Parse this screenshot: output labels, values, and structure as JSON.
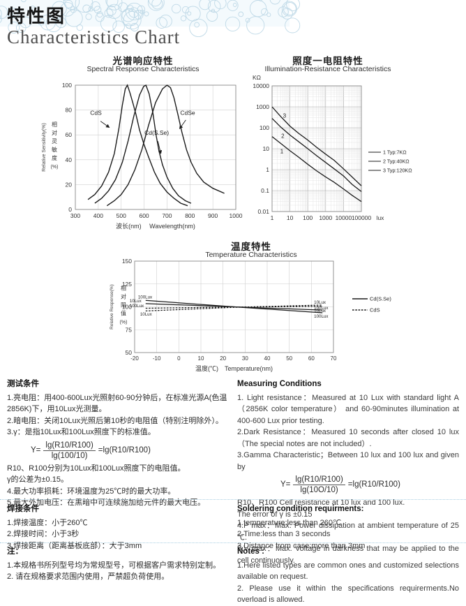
{
  "header": {
    "title_zh": "特性图",
    "title_en": "Characteristics Chart"
  },
  "chart_data": [
    {
      "type": "line",
      "title_zh": "光谱响应特性",
      "title_en": "Spectral Response Characteristics",
      "xlabel": "波长(nm)　 Wavelength(nm)",
      "ylabel_en": "Relative Sensitivity(%)",
      "ylabel_zh_chars": [
        "相",
        "对",
        "灵",
        "敏",
        "度",
        "(%)"
      ],
      "xlim": [
        300,
        1000
      ],
      "ylim": [
        0,
        100
      ],
      "xtick_step": 100,
      "ytick_step": 20,
      "grid": true,
      "series": [
        {
          "name": "CdS",
          "points": [
            [
              355,
              8
            ],
            [
              385,
              12
            ],
            [
              415,
              19
            ],
            [
              445,
              30
            ],
            [
              470,
              45
            ],
            [
              490,
              65
            ],
            [
              505,
              84
            ],
            [
              518,
              97
            ],
            [
              527,
              100
            ],
            [
              538,
              94
            ],
            [
              552,
              85
            ],
            [
              565,
              76
            ],
            [
              580,
              64
            ],
            [
              600,
              52
            ],
            [
              620,
              42
            ],
            [
              645,
              30
            ],
            [
              670,
              21
            ],
            [
              700,
              14
            ],
            [
              730,
              9
            ],
            [
              760,
              5
            ],
            [
              790,
              3
            ]
          ]
        },
        {
          "name": "Cd(S.Se)",
          "points": [
            [
              385,
              5
            ],
            [
              415,
              9
            ],
            [
              445,
              15
            ],
            [
              475,
              24
            ],
            [
              505,
              38
            ],
            [
              530,
              55
            ],
            [
              555,
              75
            ],
            [
              580,
              92
            ],
            [
              598,
              99
            ],
            [
              608,
              100
            ],
            [
              622,
              93
            ],
            [
              638,
              78
            ],
            [
              652,
              60
            ],
            [
              665,
              47
            ],
            [
              680,
              36
            ],
            [
              700,
              26
            ],
            [
              725,
              17
            ],
            [
              750,
              11
            ],
            [
              780,
              7
            ],
            [
              805,
              5
            ]
          ]
        },
        {
          "name": "CdSe",
          "points": [
            [
              438,
              3
            ],
            [
              470,
              7
            ],
            [
              500,
              12
            ],
            [
              530,
              20
            ],
            [
              560,
              32
            ],
            [
              590,
              48
            ],
            [
              620,
              68
            ],
            [
              650,
              86
            ],
            [
              680,
              97
            ],
            [
              700,
              100
            ],
            [
              715,
              98
            ],
            [
              730,
              90
            ],
            [
              748,
              76
            ],
            [
              765,
              62
            ],
            [
              785,
              48
            ],
            [
              805,
              38
            ],
            [
              830,
              29
            ],
            [
              860,
              22
            ],
            [
              900,
              17
            ],
            [
              950,
              13
            ]
          ]
        }
      ],
      "annotations": [
        {
          "text": "CdS",
          "tx": 390,
          "ty": 76,
          "ax1": 410,
          "ay1": 71,
          "ax2": 448,
          "ay2": 66
        },
        {
          "text": "CdSe",
          "tx": 790,
          "ty": 76,
          "ax1": 782,
          "ay1": 72,
          "ax2": 755,
          "ay2": 65
        },
        {
          "text": "Cd(S.Se)",
          "tx": 655,
          "ty": 60,
          "ax1": 660,
          "ay1": 55,
          "ax2": 673,
          "ay2": 45
        }
      ]
    },
    {
      "type": "line",
      "xscale": "log",
      "yscale": "log",
      "title_zh": "照度一电阻特性",
      "title_en": "Illumination-Resistance Characteristics",
      "y_unit": "KΩ",
      "x_unit": "lux",
      "xlim": [
        1,
        100000
      ],
      "ylim": [
        0.01,
        10000
      ],
      "xticks": [
        1,
        10,
        100,
        1000,
        10000,
        100000
      ],
      "yticks": [
        10000,
        1000,
        100,
        10,
        1,
        0.1,
        0.01
      ],
      "series": [
        {
          "name": "1",
          "label_pos": [
            3.5,
            6
          ],
          "points": [
            [
              1,
              38
            ],
            [
              3,
              18
            ],
            [
              10,
              8
            ],
            [
              30,
              4
            ],
            [
              100,
              1.8
            ],
            [
              300,
              0.9
            ],
            [
              1000,
              0.45
            ],
            [
              3000,
              0.25
            ],
            [
              10000,
              0.12
            ],
            [
              30000,
              0.06
            ],
            [
              100000,
              0.03
            ]
          ]
        },
        {
          "name": "2",
          "label_pos": [
            4,
            33
          ],
          "points": [
            [
              1,
              280
            ],
            [
              3,
              110
            ],
            [
              10,
              45
            ],
            [
              30,
              22
            ],
            [
              100,
              10
            ],
            [
              300,
              4.8
            ],
            [
              1000,
              2.2
            ],
            [
              3000,
              1.1
            ],
            [
              10000,
              0.5
            ],
            [
              30000,
              0.2
            ],
            [
              100000,
              0.09
            ]
          ]
        },
        {
          "name": "3",
          "label_pos": [
            5,
            300
          ],
          "points": [
            [
              1,
              1000
            ],
            [
              3,
              350
            ],
            [
              10,
              120
            ],
            [
              30,
              55
            ],
            [
              100,
              26
            ],
            [
              300,
              12
            ],
            [
              1000,
              5.5
            ],
            [
              3000,
              2.8
            ],
            [
              10000,
              1.1
            ],
            [
              30000,
              0.45
            ],
            [
              100000,
              0.17
            ]
          ]
        }
      ],
      "legend": [
        "1  Typ:7KΩ",
        "2  Typ:40KΩ",
        "3  Typ:120KΩ"
      ],
      "legend_position": "right"
    },
    {
      "type": "line",
      "title_zh": "温度特性",
      "title_en": "Temperature Characteristics",
      "xlabel": "温度(℃)　Temperature(nm)",
      "ylabel_en": "Relative Response(%)",
      "ylabel_zh_chars": [
        "相",
        "对",
        "阻",
        "值",
        "(%)"
      ],
      "xlim": [
        -20,
        70
      ],
      "ylim": [
        50,
        150
      ],
      "xtick_step": 10,
      "ytick_step": 25,
      "series": [
        {
          "name": "Cd(S.Se) 100Lux",
          "style": "solid",
          "start_label": "100Lux",
          "end_label": "100Lux",
          "sl_dx": 3,
          "sl_dy": -3,
          "el_dy": 7,
          "points": [
            [
              -15,
              107
            ],
            [
              25,
              100
            ],
            [
              65,
              93.5
            ]
          ]
        },
        {
          "name": "Cd(S.Se) 10Lux",
          "style": "solid",
          "start_label": "10Lux",
          "end_label": "10Lux",
          "sl_dx": -9,
          "sl_dy": -2,
          "el_dy": 3,
          "points": [
            [
              -15,
              103.5
            ],
            [
              25,
              100
            ],
            [
              65,
              96.5
            ]
          ]
        },
        {
          "name": "CdS 100Lux",
          "style": "dashed",
          "start_label": "100Lux",
          "end_label": "100Lux",
          "sl_dx": -9,
          "sl_dy": -1.5,
          "el_dy": 4,
          "points": [
            [
              -15,
              98.5
            ],
            [
              25,
              99.8
            ],
            [
              65,
              100.5
            ]
          ]
        },
        {
          "name": "CdS 10Lux",
          "style": "dashed",
          "start_label": "10Lux",
          "end_label": "10Lux",
          "sl_dx": 6,
          "sl_dy": 6.5,
          "el_dy": -2,
          "points": [
            [
              -15,
              95.5
            ],
            [
              25,
              99.5
            ],
            [
              65,
              102
            ]
          ]
        }
      ],
      "legend": [
        {
          "label": "Cd(S.Se)",
          "style": "solid"
        },
        {
          "label": "CdS",
          "style": "dashed"
        }
      ],
      "legend_position": "right"
    }
  ],
  "sections": {
    "m_zh": {
      "heading": "测试条件",
      "lines1": [
        "1.亮电阻：用400-600Lux光照射60-90分钟后，在标准光源A(色温2856K)下，用10Lux光测量。",
        "2.暗电阻：关闭10Lux光照后第10秒的电阻值（特别注明除外）。",
        "3.γ：是指10Lux和100Lux照度下的标准值。"
      ],
      "formula": {
        "prefix": "Y=",
        "num": "lg(R10/R100)",
        "den": "lg(100/10)",
        "suffix": "=lg(R10/R100)"
      },
      "lines2": [
        "R10、R100分别为10Lux和100Lux照度下的电阻值。",
        "γ的公差为±0.15。",
        "4.最大功率损耗：环境温度为25℃时的最大功率。",
        "5.最大外加电压：在黑暗中可连续施加给元件的最大电压。"
      ]
    },
    "m_en": {
      "heading": "Measuring Conditions",
      "lines1": [
        "1. Light resistance：Measured at 10 Lux with standard light A（2856K color temperature） and 60-90minutes illumination at 400-600 Lux prior testing.",
        "2.Dark Resistance：Measured 10 seconds after closed 10 lux（The special notes are not included）.",
        "3.Gamma Characteristic；Between 10 lux and 100 lux and given by"
      ],
      "formula": {
        "prefix": "Y=",
        "num": "lg(R10/R100)",
        "den": "lg(10O/10)",
        "suffix": "=lg(R10/R100)"
      },
      "lines2": [
        "R10、R100 Cell resistance at 10 lux and 100 lux.",
        "The error of γ is ±0.15",
        "4.P max：Max. Power dissipation at ambient temperature of 25 ℃.",
        "5.V max：Max. Voltage in darkness that may be applied to the cell continuously."
      ]
    },
    "s_zh": {
      "heading": "焊接条件",
      "lines": [
        "1.焊接温度：小于260℃",
        "2.焊接时间：小于3秒",
        "3.焊接距离（距离基板底部）：大于3mm"
      ]
    },
    "s_en": {
      "heading": "Soldering condition requirments:",
      "lines": [
        "1.temperature:less than 260℃",
        "2.Time:less than 3 seconds",
        "3.Distance from case:more than 3mm"
      ]
    },
    "n_zh": {
      "heading": "注：",
      "lines": [
        "1.本规格书所列型号均为常规型号，可根据客户需求特别定制。",
        "2. 请在规格要求范围内使用，严禁超负荷使用。"
      ]
    },
    "n_en": {
      "heading": "Notes :",
      "lines": [
        "1.Here listed types are common ones and customized selections available on request.",
        "2. Please use it within the specifications requirerments.No overload is allowed."
      ]
    }
  },
  "colors": {
    "accent_band": "#bfd9e7",
    "divider": "#a9cfe2",
    "curve": "#1b1b1b",
    "grid": "#cfcfcf"
  }
}
